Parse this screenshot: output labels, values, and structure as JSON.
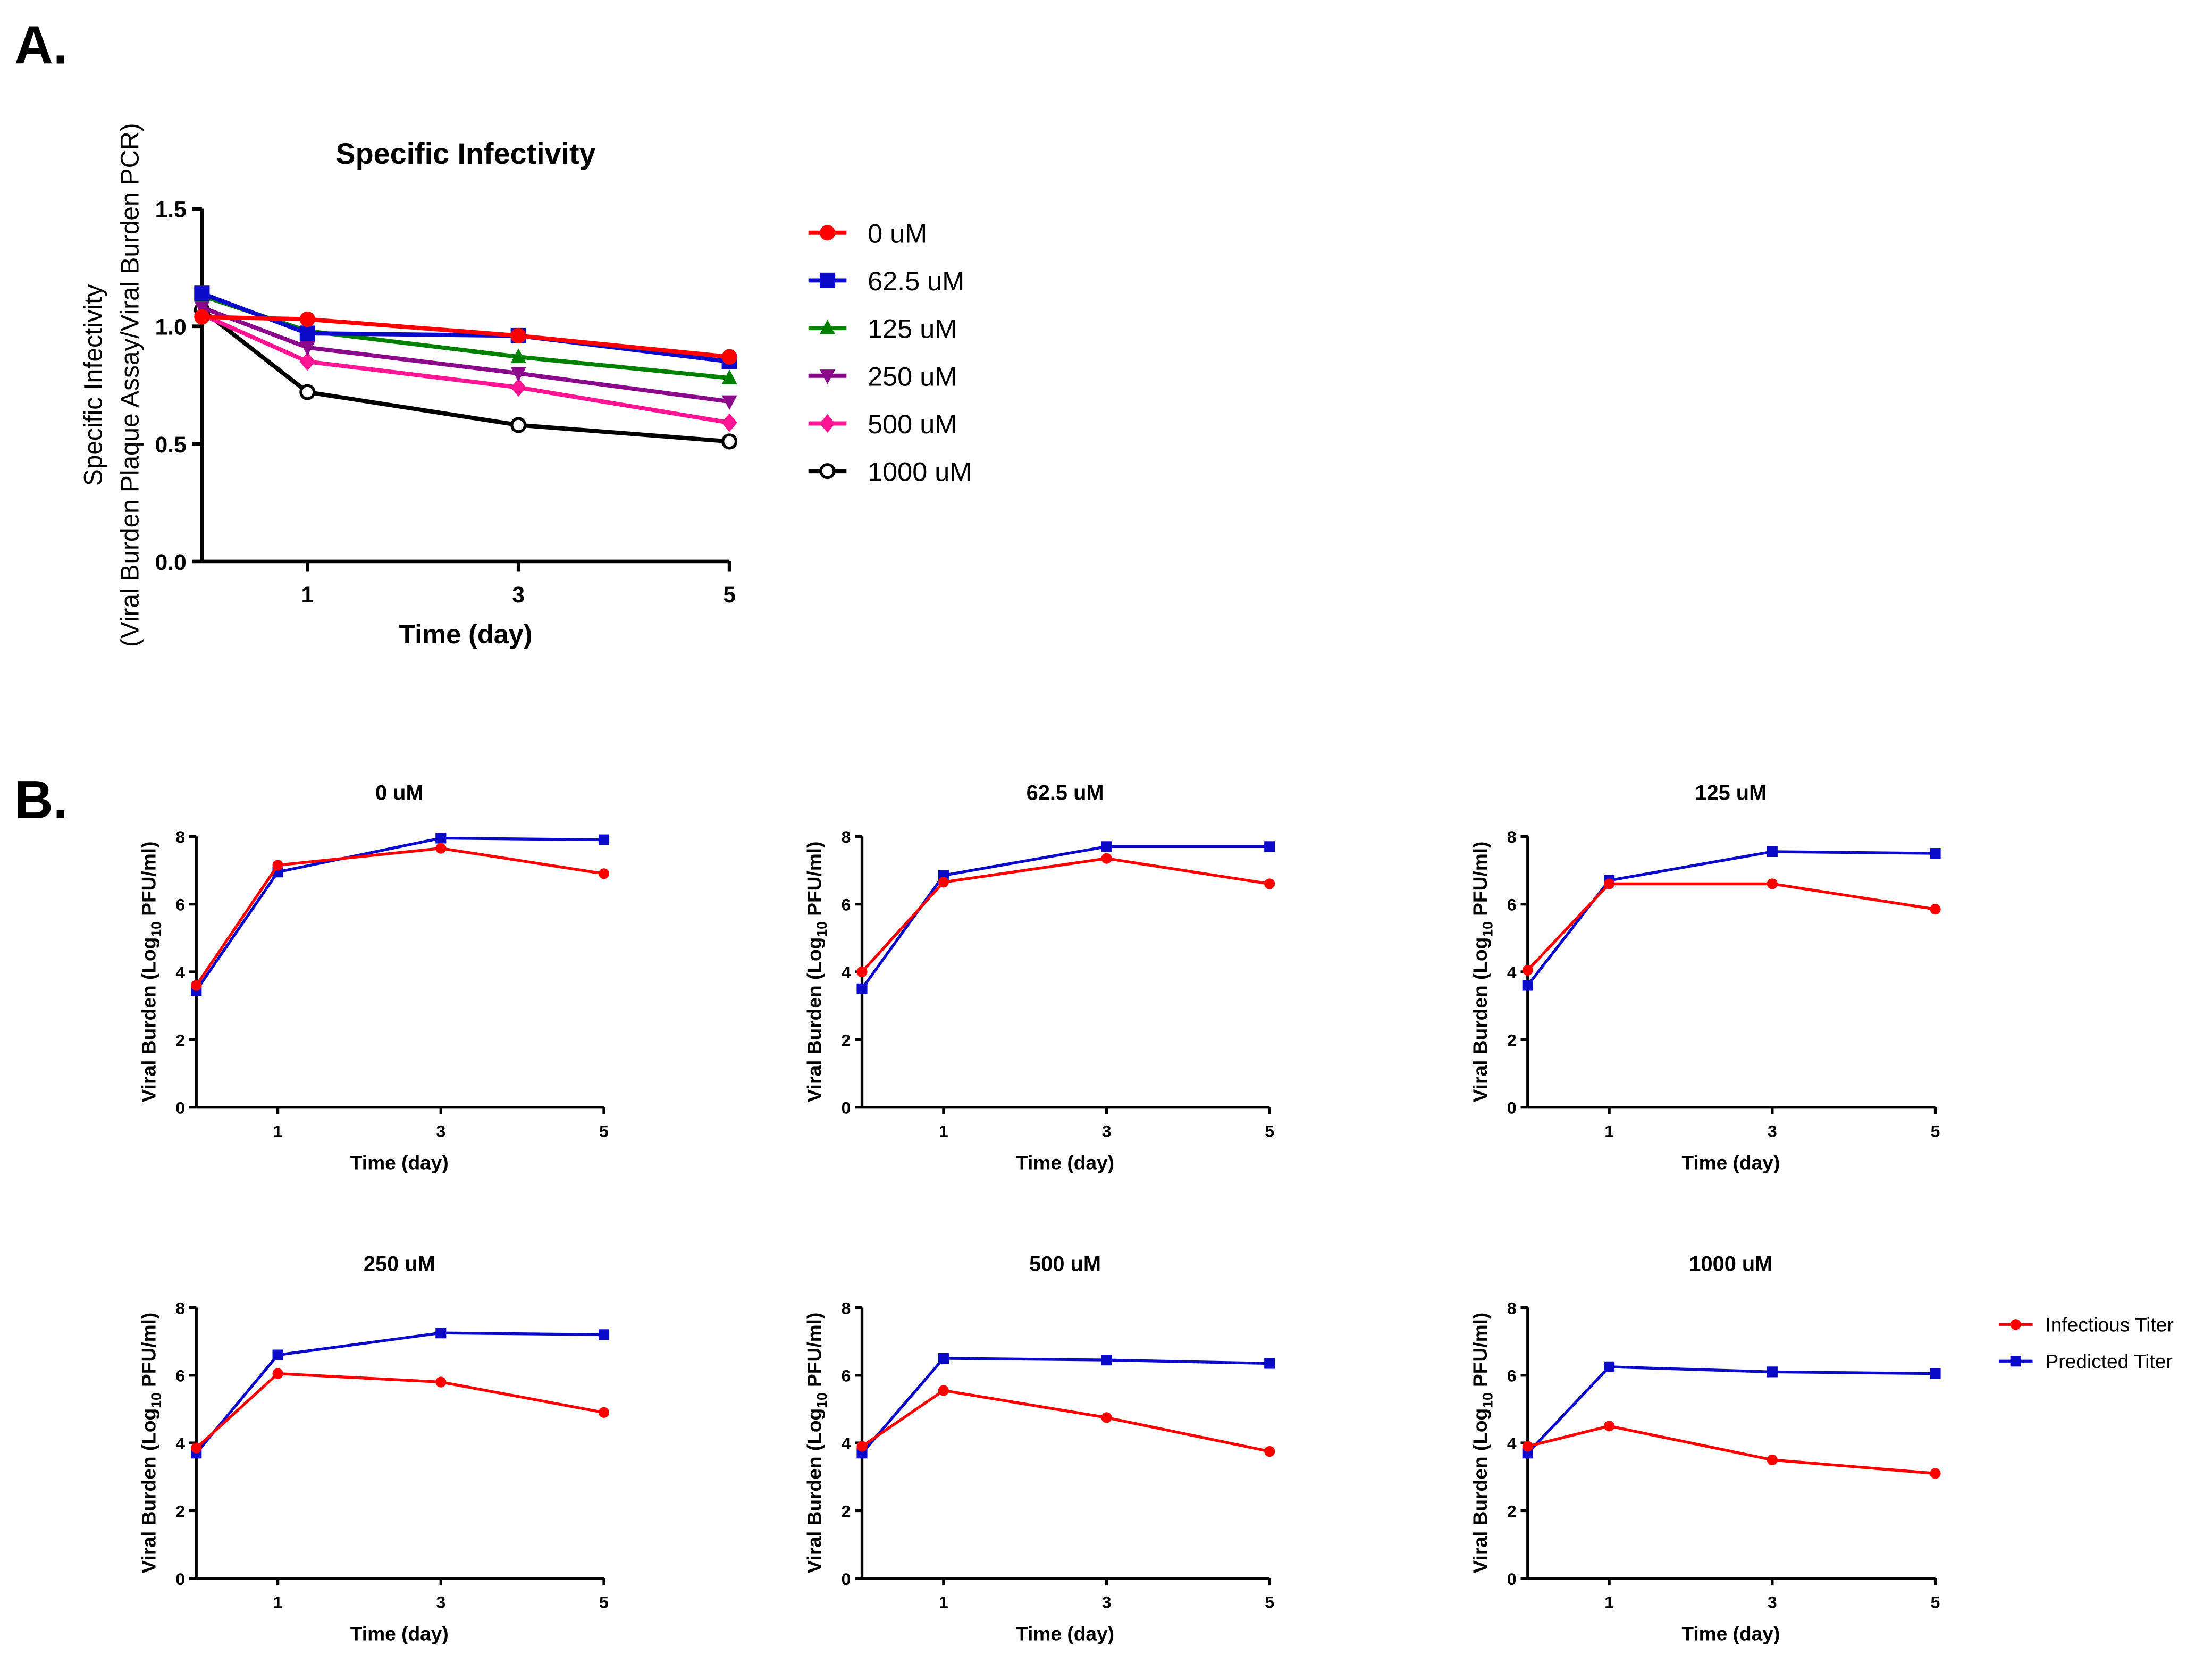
{
  "chart_data": [
    {
      "panel_label": "A.",
      "type": "line",
      "title": "Specific Infectivity",
      "xlabel": "Time (day)",
      "ylabel_lines": [
        "Specific Infectivity",
        "(Viral Burden Plaque Assay/Viral Burden PCR)"
      ],
      "x": [
        0,
        1,
        3,
        5
      ],
      "xticks": [
        "1",
        "3",
        "5"
      ],
      "xlim": [
        0,
        5
      ],
      "ylim": [
        0,
        1.5
      ],
      "yticks": [
        "0.0",
        "0.5",
        "1.0",
        "1.5"
      ],
      "legend_position": "right",
      "series": [
        {
          "name": "0 uM",
          "color": "#ff0000",
          "marker": "circle",
          "values": [
            1.04,
            1.03,
            0.96,
            0.87
          ]
        },
        {
          "name": "62.5 uM",
          "color": "#0a0ac8",
          "marker": "square",
          "values": [
            1.14,
            0.97,
            0.96,
            0.85
          ]
        },
        {
          "name": "125 uM",
          "color": "#008000",
          "marker": "triangle-up",
          "values": [
            1.13,
            0.98,
            0.87,
            0.78
          ]
        },
        {
          "name": "250 uM",
          "color": "#8b0a8b",
          "marker": "triangle-down",
          "values": [
            1.08,
            0.91,
            0.8,
            0.68
          ]
        },
        {
          "name": "500 uM",
          "color": "#ff1493",
          "marker": "diamond",
          "values": [
            1.05,
            0.85,
            0.74,
            0.59
          ]
        },
        {
          "name": "1000 uM",
          "color": "#000000",
          "marker": "open-circle",
          "values": [
            1.07,
            0.72,
            0.58,
            0.51
          ]
        }
      ]
    },
    {
      "panel_label": "B.",
      "type": "line",
      "xlabel": "Time (day)",
      "ylabel": "Viral Burden (Log",
      "ylabel_sub": "10",
      "ylabel_end": " PFU/ml)",
      "x": [
        0,
        1,
        3,
        5
      ],
      "xticks": [
        "1",
        "3",
        "5"
      ],
      "xlim": [
        0,
        5
      ],
      "ylim": [
        0,
        8
      ],
      "yticks": [
        "0",
        "2",
        "4",
        "6",
        "8"
      ],
      "legend_position": "right",
      "legend": [
        {
          "name": "Infectious Titer",
          "color": "#ff0000",
          "marker": "circle"
        },
        {
          "name": "Predicted Titer",
          "color": "#0a0ac8",
          "marker": "square"
        }
      ],
      "panels": [
        {
          "title": "0 uM",
          "infectious": [
            3.6,
            7.15,
            7.65,
            6.9
          ],
          "predicted": [
            3.45,
            6.95,
            7.95,
            7.9
          ]
        },
        {
          "title": "62.5 uM",
          "infectious": [
            4.0,
            6.65,
            7.35,
            6.6
          ],
          "predicted": [
            3.5,
            6.85,
            7.7,
            7.7
          ]
        },
        {
          "title": "125 uM",
          "infectious": [
            4.05,
            6.6,
            6.6,
            5.85
          ],
          "predicted": [
            3.6,
            6.7,
            7.55,
            7.5
          ]
        },
        {
          "title": "250 uM",
          "infectious": [
            3.85,
            6.05,
            5.8,
            4.9
          ],
          "predicted": [
            3.7,
            6.6,
            7.25,
            7.2
          ]
        },
        {
          "title": "500 uM",
          "infectious": [
            3.9,
            5.55,
            4.75,
            3.75
          ],
          "predicted": [
            3.7,
            6.5,
            6.45,
            6.35
          ]
        },
        {
          "title": "1000 uM",
          "infectious": [
            3.9,
            4.5,
            3.5,
            3.1
          ],
          "predicted": [
            3.7,
            6.25,
            6.1,
            6.05
          ]
        }
      ]
    }
  ]
}
